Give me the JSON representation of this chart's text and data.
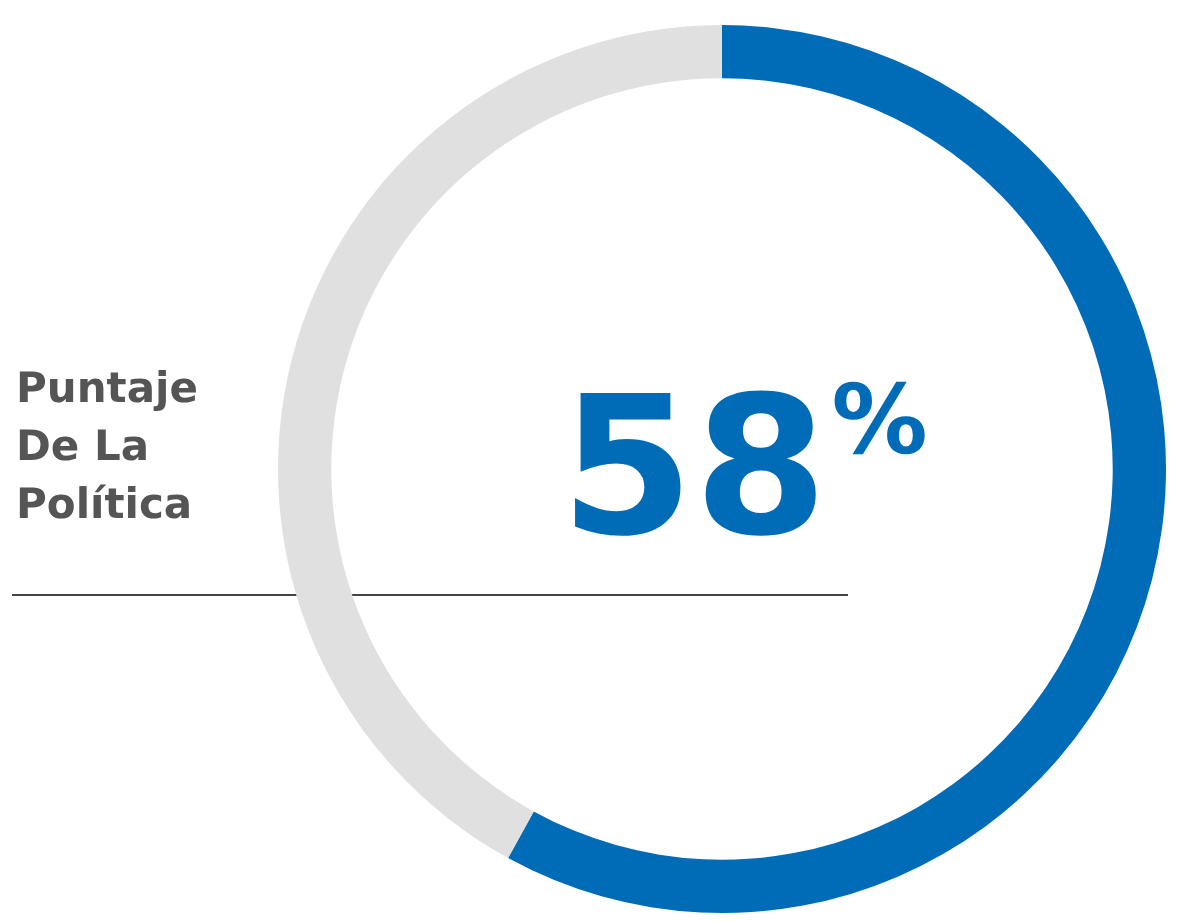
{
  "chart_data": {
    "type": "donut",
    "title": "Puntaje De La Política",
    "categories": [
      null,
      null
    ],
    "values": [
      58,
      42
    ],
    "colors": [
      "#006bb6",
      "#dfe0df"
    ],
    "value_labels": [
      "58%",
      null
    ],
    "legend": false
  }
}
